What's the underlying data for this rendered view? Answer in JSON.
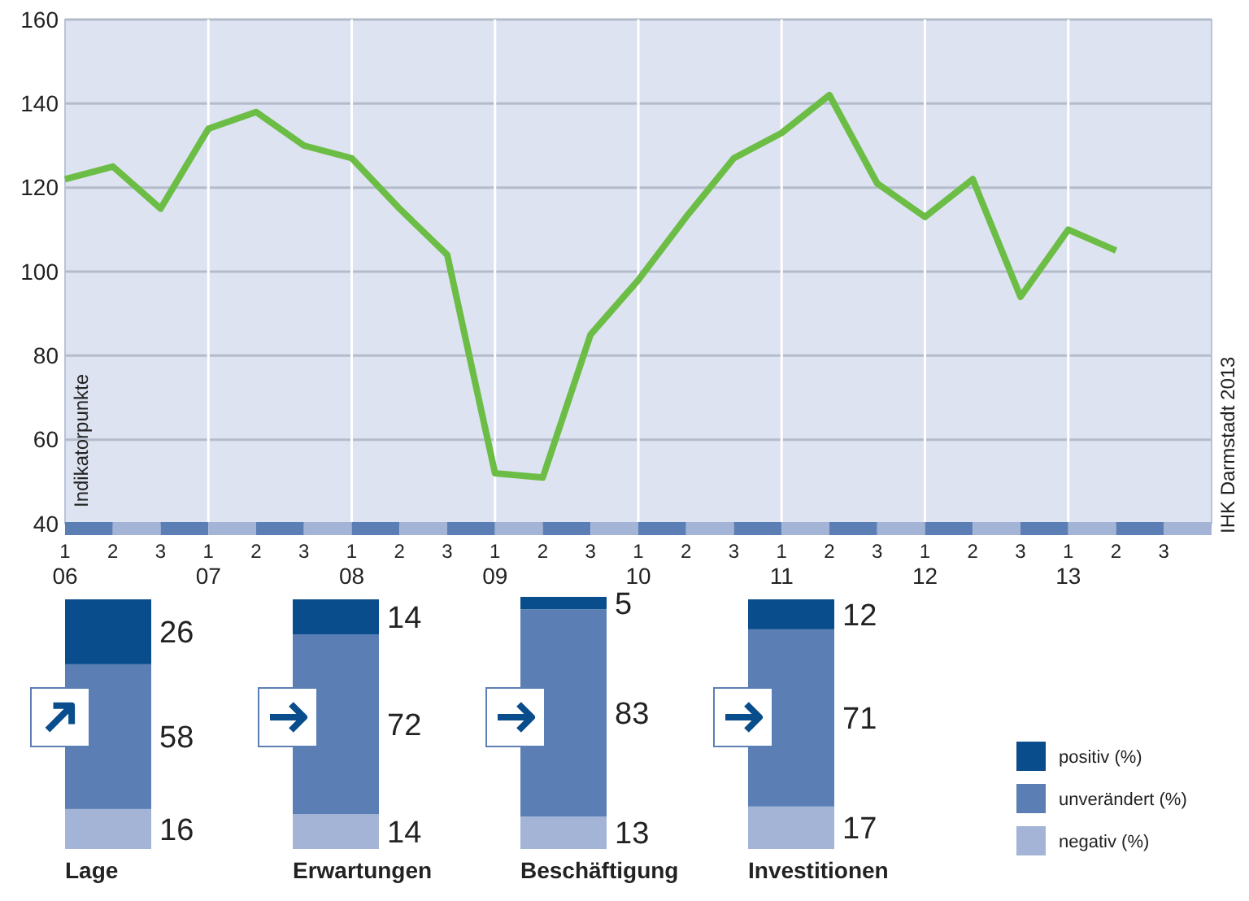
{
  "chart_data": [
    {
      "type": "line",
      "ylabel": "Indikatorpunkte",
      "categories": [
        "1\n06",
        "2",
        "3",
        "1\n07",
        "2",
        "3",
        "1\n08",
        "2",
        "3",
        "1\n09",
        "2",
        "3",
        "1\n10",
        "2",
        "3",
        "1\n11",
        "2",
        "3",
        "1\n12",
        "2",
        "3",
        "1\n13",
        "2",
        "3"
      ],
      "series": [
        {
          "color": "#6cbd45",
          "values": [
            122,
            125,
            115,
            134,
            138,
            130,
            127,
            115,
            104,
            52,
            51,
            85,
            98,
            113,
            127,
            133,
            142,
            121,
            113,
            122,
            94,
            110,
            105,
            null
          ]
        }
      ],
      "ylim": [
        40,
        160
      ],
      "yticks": [
        40,
        60,
        80,
        100,
        120,
        140,
        160
      ],
      "grid": true,
      "line_style": "solid",
      "marker": "none",
      "annotations": [
        "IHK Darmstadt 2013"
      ]
    },
    {
      "type": "bar",
      "stacked": true,
      "data_labels": true,
      "legend": "bottom right",
      "categories": [
        "Lage",
        "Erwartungen",
        "Beschäftigung",
        "Investitionen"
      ],
      "series": [
        {
          "name": "negativ (%)",
          "color": "#a3b4d6",
          "values": [
            16,
            14,
            13,
            17
          ]
        },
        {
          "name": "unverändert (%)",
          "color": "#5b7fb5",
          "values": [
            58,
            72,
            83,
            71
          ]
        },
        {
          "name": "positiv (%)",
          "color": "#0a4d8c",
          "values": [
            26,
            14,
            5,
            12
          ]
        }
      ]
    }
  ]
}
